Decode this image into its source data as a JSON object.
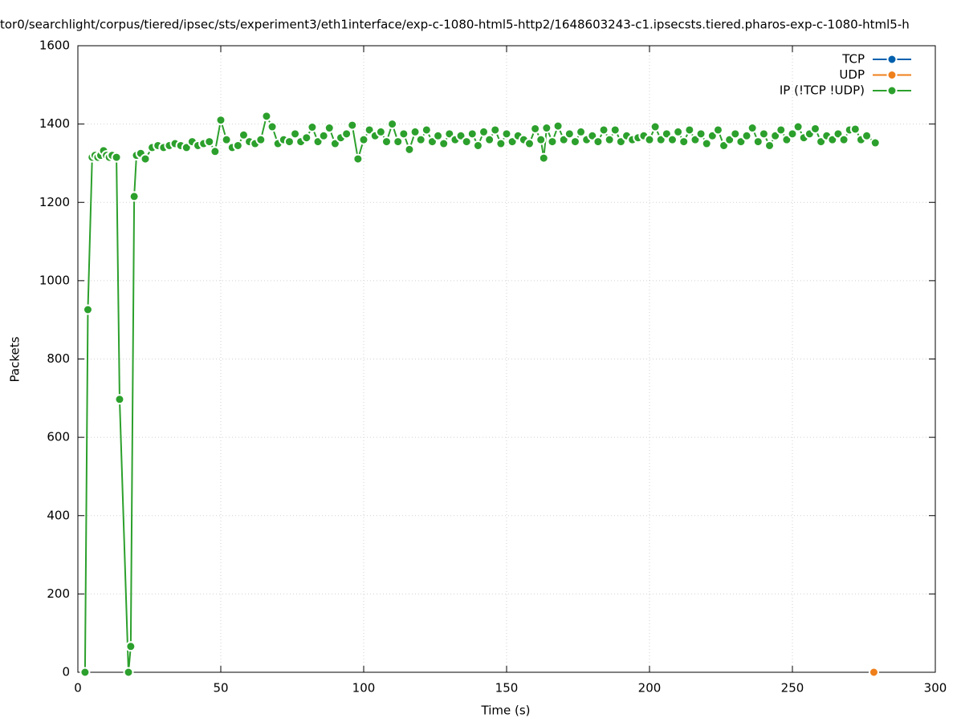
{
  "chart_data": {
    "type": "line",
    "title": "tor0/searchlight/corpus/tiered/ipsec/sts/experiment3/eth1interface/exp-c-1080-html5-http2/1648603243-c1.ipsecsts.tiered.pharos-exp-c-1080-html5-h",
    "xlabel": "Time (s)",
    "ylabel": "Packets",
    "xlim": [
      0,
      300
    ],
    "xticks": [
      0,
      50,
      100,
      150,
      200,
      250,
      300
    ],
    "ylim": [
      0,
      1600
    ],
    "yticks": [
      0,
      200,
      400,
      600,
      800,
      1000,
      1200,
      1400,
      1600
    ],
    "grid": true,
    "legend": "top-right",
    "series": [
      {
        "name": "TCP",
        "color": "#0060ad",
        "x": [],
        "values": []
      },
      {
        "name": "UDP",
        "color": "#ef7f1a",
        "x": [
          278.5
        ],
        "values": [
          0
        ]
      },
      {
        "name": "IP (!TCP  !UDP)",
        "color": "#2ca02c",
        "x": [
          2.5,
          3.5,
          5,
          6,
          7,
          8,
          9,
          10,
          11,
          12,
          13.5,
          14.6,
          17.7,
          18.5,
          19.7,
          20.5,
          22,
          23.6,
          26,
          28,
          30,
          32,
          34,
          36,
          38,
          40,
          42,
          44,
          46,
          48,
          50,
          52,
          54,
          56,
          58,
          60,
          62,
          64,
          66,
          68,
          70,
          72,
          74,
          76,
          78,
          80,
          82,
          84,
          86,
          88,
          90,
          92,
          94,
          96,
          98,
          100,
          102,
          104,
          106,
          108,
          110,
          112,
          114,
          116,
          118,
          120,
          122,
          124,
          126,
          128,
          130,
          132,
          134,
          136,
          138,
          140,
          142,
          144,
          146,
          148,
          150,
          152,
          154,
          156,
          158,
          160,
          162,
          163,
          164,
          166,
          168,
          170,
          172,
          174,
          176,
          178,
          180,
          182,
          184,
          186,
          188,
          190,
          192,
          194,
          196,
          198,
          200,
          202,
          204,
          206,
          208,
          210,
          212,
          214,
          216,
          218,
          220,
          222,
          224,
          226,
          228,
          230,
          232,
          234,
          236,
          238,
          240,
          242,
          244,
          246,
          248,
          250,
          252,
          254,
          256,
          258,
          260,
          262,
          264,
          266,
          268,
          270,
          272,
          274,
          276,
          279
        ],
        "values": [
          0,
          926,
          1315,
          1320,
          1315,
          1320,
          1332,
          1320,
          1315,
          1320,
          1315,
          697,
          0,
          66,
          1215,
          1320,
          1325,
          1311,
          1340,
          1345,
          1340,
          1345,
          1350,
          1345,
          1340,
          1355,
          1345,
          1350,
          1355,
          1330,
          1410,
          1360,
          1340,
          1345,
          1372,
          1355,
          1350,
          1360,
          1420,
          1393,
          1350,
          1360,
          1355,
          1375,
          1355,
          1365,
          1392,
          1355,
          1370,
          1390,
          1350,
          1365,
          1375,
          1397,
          1311,
          1360,
          1385,
          1370,
          1380,
          1355,
          1400,
          1355,
          1375,
          1335,
          1380,
          1360,
          1385,
          1355,
          1370,
          1350,
          1375,
          1360,
          1370,
          1355,
          1375,
          1345,
          1380,
          1360,
          1385,
          1350,
          1375,
          1355,
          1370,
          1360,
          1350,
          1388,
          1360,
          1313,
          1390,
          1355,
          1395,
          1360,
          1375,
          1355,
          1380,
          1360,
          1370,
          1355,
          1385,
          1360,
          1385,
          1355,
          1370,
          1360,
          1365,
          1370,
          1360,
          1393,
          1360,
          1375,
          1360,
          1380,
          1355,
          1385,
          1360,
          1375,
          1350,
          1370,
          1385,
          1345,
          1360,
          1375,
          1355,
          1370,
          1390,
          1355,
          1375,
          1345,
          1370,
          1385,
          1360,
          1375,
          1393,
          1365,
          1375,
          1388,
          1355,
          1370,
          1360,
          1375,
          1360,
          1385,
          1387,
          1360,
          1370,
          1352
        ]
      }
    ]
  }
}
